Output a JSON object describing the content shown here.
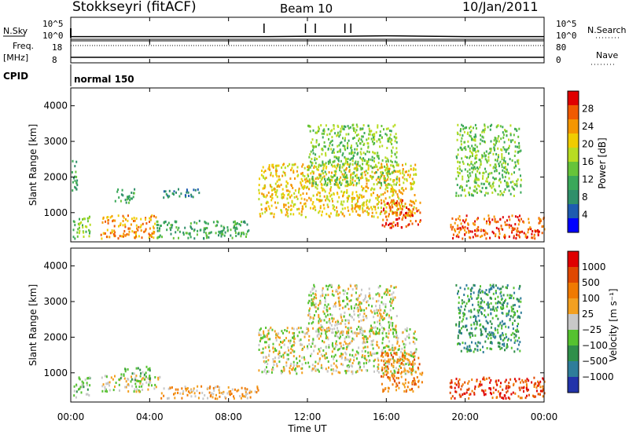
{
  "header": {
    "station": "Stokkseyri (fitACF)",
    "beam": "Beam 10",
    "date": "10/Jan/2011"
  },
  "sidebar": {
    "nsky_label": "N.Sky",
    "freq_label": "Freq.",
    "freq_unit": "[MHz]",
    "cpid_label": "CPID",
    "nsearch_label": "N.Search",
    "nave_label": "Nave"
  },
  "mode_label": "normal 150",
  "chart_data": [
    {
      "type": "line",
      "title": "",
      "xlabel": "",
      "ylabel": "N.Sky",
      "y_tick_labels": [
        "10^0",
        "10^5"
      ],
      "y2label": "N.Search",
      "y2_tick_labels": [
        "10^0",
        "10^5"
      ],
      "series": [
        {
          "name": "N.Sky",
          "x": [
            "00:00",
            "02:00",
            "04:00",
            "06:00",
            "08:00",
            "10:00",
            "12:00",
            "14:00",
            "16:00",
            "18:00",
            "20:00",
            "22:00",
            "24:00"
          ],
          "values_log10": [
            0.3,
            0.3,
            0.3,
            0.3,
            0.3,
            0.3,
            0.4,
            0.4,
            0.5,
            0.4,
            0.3,
            0.3,
            0.3
          ]
        }
      ],
      "spikes_hours": [
        9.8,
        11.9,
        12.4,
        13.9,
        14.2
      ]
    },
    {
      "type": "line",
      "ylabel": "Freq. [MHz]",
      "y_tick_labels": [
        "8",
        "18"
      ],
      "y2label": "Nave",
      "y2_tick_labels": [
        "0",
        "80"
      ],
      "series": [
        {
          "name": "Freq.",
          "x": [
            "00:00",
            "24:00"
          ],
          "values": [
            10.2,
            10.2
          ]
        },
        {
          "name": "Nave",
          "x": [
            "00:00",
            "24:00"
          ],
          "values": [
            80,
            80
          ]
        }
      ]
    },
    {
      "type": "heatmap",
      "ylabel": "Slant Range [km]",
      "xlim_hours": [
        0,
        24
      ],
      "ylim": [
        180,
        4500
      ],
      "y_ticks": [
        "1000",
        "2000",
        "3000",
        "4000"
      ],
      "colorbar": {
        "label": "Power [dB]",
        "ticks": [
          "4",
          "8",
          "12",
          "16",
          "20",
          "24",
          "28"
        ],
        "colors": [
          "#0000ff",
          "#1e5bb0",
          "#2f8f6a",
          "#3aa85a",
          "#66c43a",
          "#b8dc22",
          "#f0cc00",
          "#f59600",
          "#f05a00",
          "#e00000"
        ]
      },
      "regions": [
        {
          "t": [
            0.1,
            1.0
          ],
          "r": [
            300,
            950
          ],
          "level": 4
        },
        {
          "t": [
            1.5,
            4.3
          ],
          "r": [
            300,
            950
          ],
          "level": 7
        },
        {
          "t": [
            0.0,
            0.3
          ],
          "r": [
            1500,
            2500
          ],
          "level": 3
        },
        {
          "t": [
            2.2,
            3.2
          ],
          "r": [
            1300,
            1700
          ],
          "level": 3
        },
        {
          "t": [
            4.6,
            6.5
          ],
          "r": [
            1450,
            1700
          ],
          "level": 2
        },
        {
          "t": [
            4.3,
            9.0
          ],
          "r": [
            300,
            800
          ],
          "level": 3
        },
        {
          "t": [
            9.5,
            17.5
          ],
          "r": [
            900,
            2400
          ],
          "level": 6
        },
        {
          "t": [
            12.0,
            16.5
          ],
          "r": [
            1800,
            3500
          ],
          "level": 4
        },
        {
          "t": [
            15.7,
            17.7
          ],
          "r": [
            600,
            1400
          ],
          "level": 8
        },
        {
          "t": [
            19.2,
            24.0
          ],
          "r": [
            300,
            950
          ],
          "level": 8
        },
        {
          "t": [
            19.5,
            22.8
          ],
          "r": [
            1500,
            3500
          ],
          "level": 4
        }
      ]
    },
    {
      "type": "heatmap",
      "ylabel": "Slant Range [km]",
      "xlabel": "Time UT",
      "x_ticks": [
        "00:00",
        "04:00",
        "08:00",
        "12:00",
        "16:00",
        "20:00",
        "00:00"
      ],
      "xlim_hours": [
        0,
        24
      ],
      "ylim": [
        180,
        4500
      ],
      "y_ticks": [
        "1000",
        "2000",
        "3000",
        "4000"
      ],
      "colorbar": {
        "label": "Velocity [m s⁻¹]",
        "ticks": [
          "1000",
          "500",
          "100",
          "25",
          "−25",
          "−100",
          "−500",
          "−1000"
        ],
        "colors": [
          "#2233aa",
          "#2e7d9a",
          "#2f8f4a",
          "#55c230",
          "#c8c8c8",
          "#f3a020",
          "#f07a00",
          "#e04800",
          "#e00000"
        ]
      },
      "regions": [
        {
          "t": [
            0.1,
            1.0
          ],
          "r": [
            300,
            900
          ],
          "level": 3
        },
        {
          "t": [
            1.5,
            4.5
          ],
          "r": [
            500,
            950
          ],
          "level": 4
        },
        {
          "t": [
            2.5,
            4.0
          ],
          "r": [
            800,
            1200
          ],
          "level": 3
        },
        {
          "t": [
            4.5,
            9.5
          ],
          "r": [
            300,
            650
          ],
          "level": 5
        },
        {
          "t": [
            9.5,
            17.5
          ],
          "r": [
            1000,
            2300
          ],
          "level": 4
        },
        {
          "t": [
            12.0,
            16.5
          ],
          "r": [
            2100,
            3500
          ],
          "level": 4
        },
        {
          "t": [
            15.7,
            17.8
          ],
          "r": [
            500,
            1600
          ],
          "level": 6
        },
        {
          "t": [
            19.2,
            24.0
          ],
          "r": [
            300,
            900
          ],
          "level": 7
        },
        {
          "t": [
            19.5,
            22.8
          ],
          "r": [
            1600,
            3500
          ],
          "level": 2
        }
      ]
    }
  ]
}
